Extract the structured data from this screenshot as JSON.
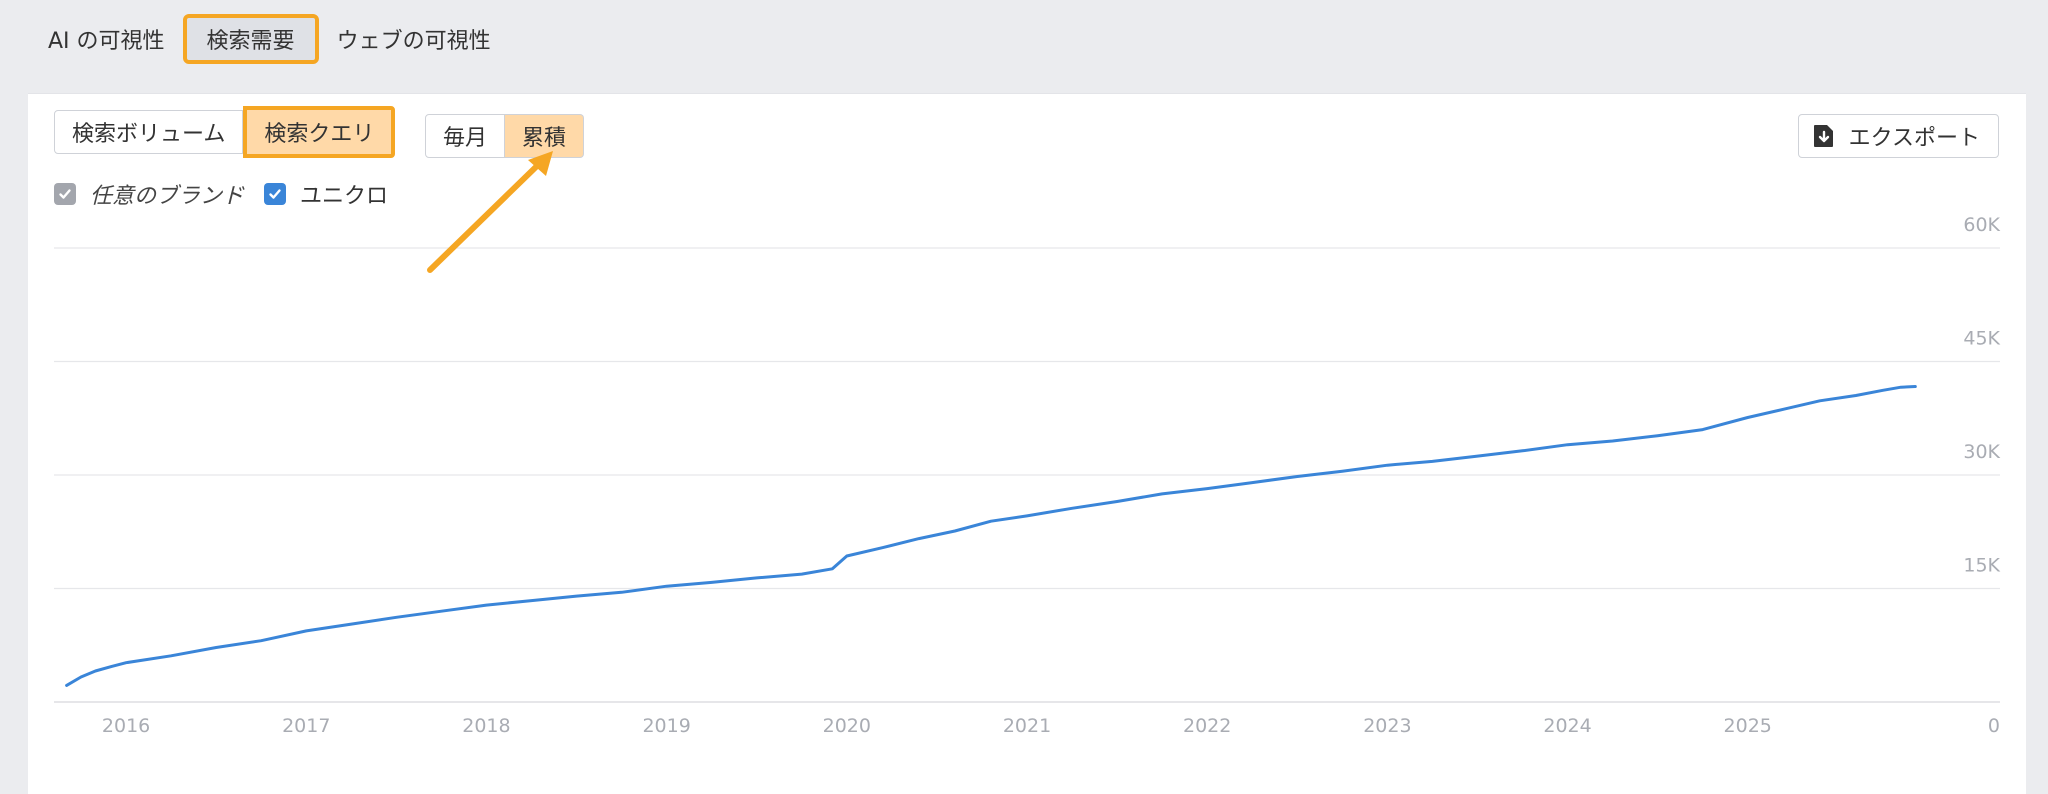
{
  "top_tabs": [
    {
      "label": "AI の可視性",
      "selected": false
    },
    {
      "label": "検索需要",
      "selected": true
    },
    {
      "label": "ウェブの可視性",
      "selected": false
    }
  ],
  "metric_toggle": [
    "検索ボリューム",
    "検索クエリ"
  ],
  "period_toggle": [
    "毎月",
    "累積"
  ],
  "export_label": "エクスポート",
  "legend": [
    {
      "label": "任意のブランド",
      "checked": true,
      "color": "#a3a6ad"
    },
    {
      "label": "ユニクロ",
      "checked": true,
      "color": "#3a85d8"
    }
  ],
  "annotation_color": "#f5a623",
  "chart_data": {
    "type": "line",
    "title": "",
    "xlabel": "",
    "ylabel": "",
    "x_ticks": [
      "2016",
      "2017",
      "2018",
      "2019",
      "2020",
      "2021",
      "2022",
      "2023",
      "2024",
      "2025"
    ],
    "y_ticks": [
      "0",
      "15K",
      "30K",
      "45K",
      "60K"
    ],
    "ylim": [
      0,
      60000
    ],
    "xlim": [
      2015.6,
      2026.4
    ],
    "y_axis_position": "right",
    "grid": true,
    "series": [
      {
        "name": "ユニクロ",
        "color": "#3a85d8",
        "points": [
          [
            2015.67,
            2200
          ],
          [
            2015.75,
            3300
          ],
          [
            2015.83,
            4100
          ],
          [
            2015.92,
            4700
          ],
          [
            2016.0,
            5200
          ],
          [
            2016.25,
            6100
          ],
          [
            2016.5,
            7200
          ],
          [
            2016.75,
            8100
          ],
          [
            2017.0,
            9400
          ],
          [
            2017.25,
            10300
          ],
          [
            2017.5,
            11200
          ],
          [
            2017.75,
            12000
          ],
          [
            2018.0,
            12800
          ],
          [
            2018.25,
            13400
          ],
          [
            2018.5,
            14000
          ],
          [
            2018.75,
            14500
          ],
          [
            2019.0,
            15300
          ],
          [
            2019.25,
            15800
          ],
          [
            2019.5,
            16400
          ],
          [
            2019.75,
            16900
          ],
          [
            2019.92,
            17600
          ],
          [
            2020.0,
            19300
          ],
          [
            2020.2,
            20400
          ],
          [
            2020.4,
            21600
          ],
          [
            2020.6,
            22600
          ],
          [
            2020.8,
            23900
          ],
          [
            2021.0,
            24600
          ],
          [
            2021.25,
            25600
          ],
          [
            2021.5,
            26500
          ],
          [
            2021.75,
            27500
          ],
          [
            2022.0,
            28200
          ],
          [
            2022.25,
            29000
          ],
          [
            2022.5,
            29800
          ],
          [
            2022.75,
            30500
          ],
          [
            2023.0,
            31300
          ],
          [
            2023.25,
            31800
          ],
          [
            2023.5,
            32500
          ],
          [
            2023.75,
            33200
          ],
          [
            2024.0,
            34000
          ],
          [
            2024.25,
            34500
          ],
          [
            2024.5,
            35200
          ],
          [
            2024.75,
            36000
          ],
          [
            2025.0,
            37600
          ],
          [
            2025.2,
            38700
          ],
          [
            2025.4,
            39800
          ],
          [
            2025.6,
            40500
          ],
          [
            2025.75,
            41200
          ],
          [
            2025.85,
            41600
          ],
          [
            2025.93,
            41700
          ]
        ]
      }
    ]
  }
}
